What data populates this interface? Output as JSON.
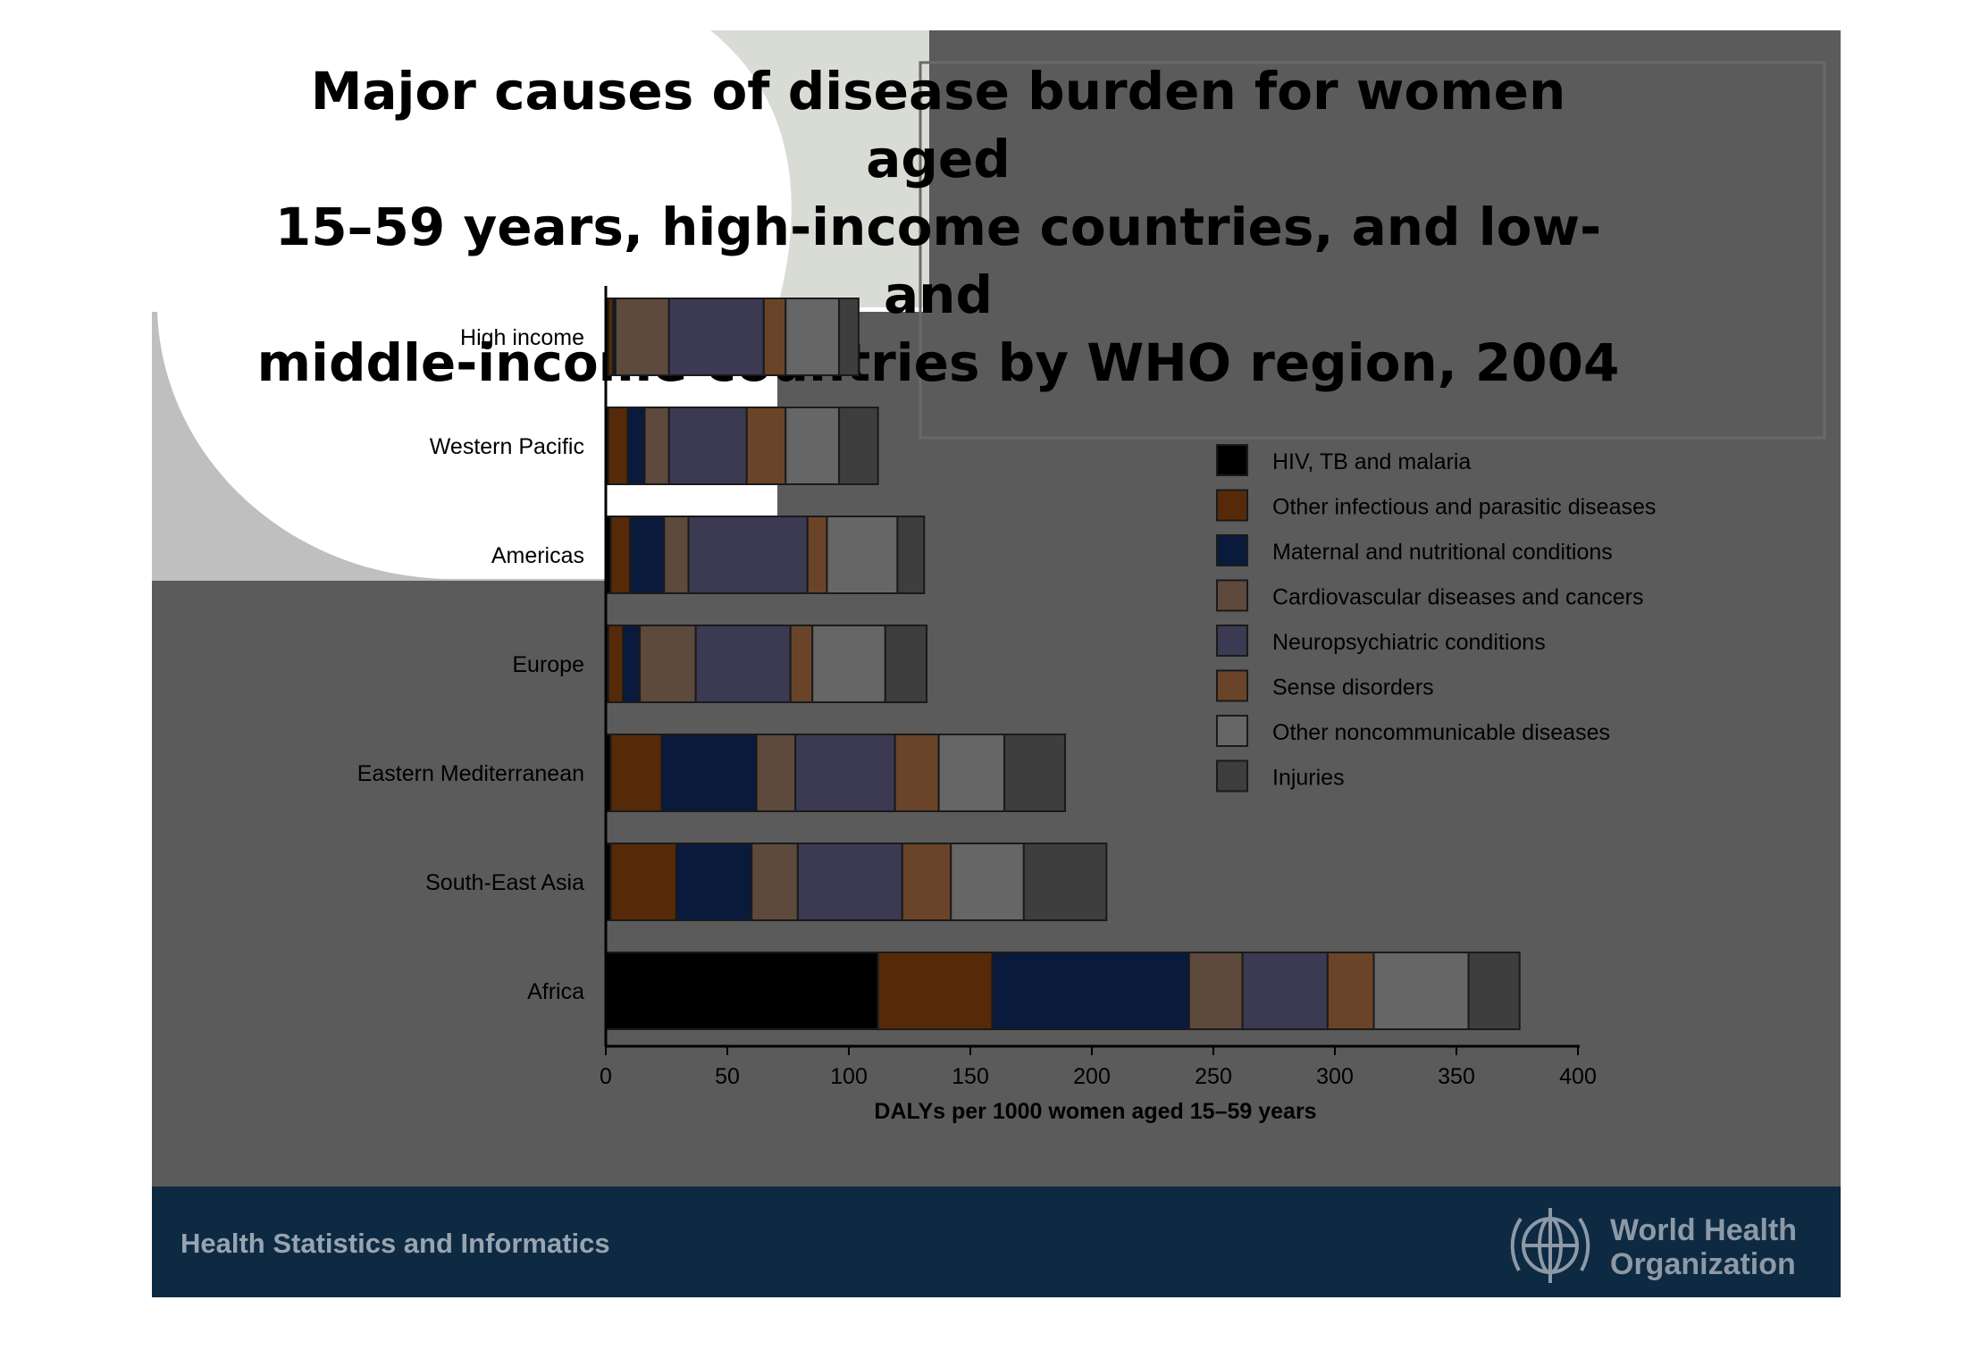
{
  "title_lines": [
    "Major causes of disease burden for women aged",
    "15–59 years, high-income countries, and low- and",
    "middle-income countries by WHO region, 2004"
  ],
  "footer": {
    "left_text": "Health Statistics and Informatics",
    "org_line1": "World Health",
    "org_line2": "Organization"
  },
  "colors": {
    "slide_bg": "#5b5b5b",
    "footer_bg": "#0d2a42"
  },
  "chart_data": {
    "type": "bar",
    "orientation": "horizontal",
    "stacked": true,
    "title": "Major causes of disease burden for women aged 15–59 years, high-income countries, and low- and middle-income countries by WHO region, 2004",
    "xlabel": "DALYs per 1000 women aged 15–59 years",
    "ylabel": "",
    "xlim": [
      0,
      400
    ],
    "xticks": [
      0,
      50,
      100,
      150,
      200,
      250,
      300,
      350,
      400
    ],
    "grid": false,
    "legend_position": "right",
    "categories": [
      "High income",
      "Western Pacific",
      "Americas",
      "Europe",
      "Eastern Mediterranean",
      "South-East Asia",
      "Africa"
    ],
    "series": [
      {
        "name": "HIV, TB and malaria",
        "color": "#000000",
        "values": [
          1,
          1,
          2,
          1,
          2,
          2,
          112
        ]
      },
      {
        "name": "Other infectious and parasitic diseases",
        "color": "#562a08",
        "values": [
          2,
          8,
          8,
          6,
          21,
          27,
          47
        ]
      },
      {
        "name": "Maternal and nutritional conditions",
        "color": "#0a1a3c",
        "values": [
          1,
          7,
          14,
          7,
          39,
          31,
          81
        ]
      },
      {
        "name": "Cardiovascular diseases and cancers",
        "color": "#5d4a3d",
        "values": [
          22,
          10,
          10,
          23,
          16,
          19,
          22
        ]
      },
      {
        "name": "Neuropsychiatric conditions",
        "color": "#3b3a52",
        "values": [
          39,
          32,
          49,
          39,
          41,
          43,
          35
        ]
      },
      {
        "name": "Sense disorders",
        "color": "#6a4428",
        "values": [
          9,
          16,
          8,
          9,
          18,
          20,
          19
        ]
      },
      {
        "name": "Other noncommunicable diseases",
        "color": "#666666",
        "values": [
          22,
          22,
          29,
          30,
          27,
          30,
          39
        ]
      },
      {
        "name": "Injuries",
        "color": "#3e3e3e",
        "values": [
          8,
          16,
          11,
          17,
          25,
          34,
          21
        ]
      }
    ]
  }
}
